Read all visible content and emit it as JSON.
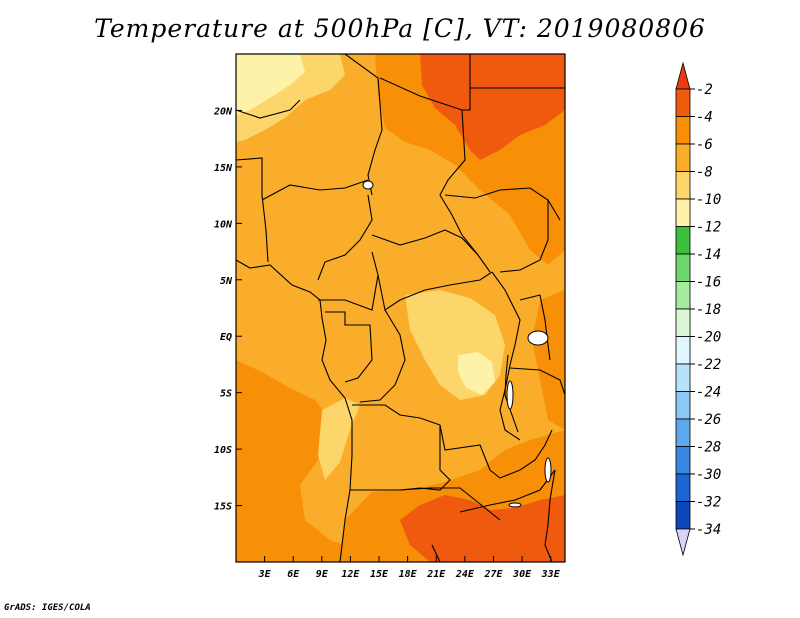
{
  "title": "Temperature at 500hPa [C], VT: 2019080806",
  "credit": "GrADS: IGES/COLA",
  "map": {
    "lon_range": [
      0,
      34.5
    ],
    "lat_range": [
      -20,
      25
    ],
    "lon_ticks": [
      "3E",
      "6E",
      "9E",
      "12E",
      "15E",
      "18E",
      "21E",
      "24E",
      "27E",
      "30E",
      "33E"
    ],
    "lon_tick_values": [
      3,
      6,
      9,
      12,
      15,
      18,
      21,
      24,
      27,
      30,
      33
    ],
    "lat_ticks": [
      "20N",
      "15N",
      "10N",
      "5N",
      "EQ",
      "5S",
      "10S",
      "15S"
    ],
    "lat_tick_values": [
      20,
      15,
      10,
      5,
      0,
      -5,
      -10,
      -15
    ]
  },
  "colorbar": {
    "labels": [
      "-2",
      "-4",
      "-6",
      "-8",
      "-10",
      "-12",
      "-14",
      "-16",
      "-18",
      "-20",
      "-22",
      "-24",
      "-26",
      "-28",
      "-30",
      "-32",
      "-34"
    ],
    "colors": [
      "#f05a0e",
      "#f78f07",
      "#f9ad2b",
      "#fcd56b",
      "#fef1a8",
      "#3cbf3c",
      "#6fd66f",
      "#a4eaa0",
      "#dcf7d8",
      "#e0f6fe",
      "#b7e2fb",
      "#8cc8f6",
      "#5ba8ee",
      "#3a87e3",
      "#1d65d1",
      "#0e48b8",
      "#0b1f7a"
    ],
    "top_color": "#e83c0c",
    "bottom_color": "#d9d3f5"
  },
  "field_colors": {
    "t_minus_4": "#f78f07",
    "t_minus_6": "#f9ad2b",
    "t_minus_8": "#fcd56b",
    "t_minus_10": "#fef1a8",
    "t_minus_2": "#f05a0e",
    "lakes": "#ffffff",
    "borders": "#000000"
  }
}
